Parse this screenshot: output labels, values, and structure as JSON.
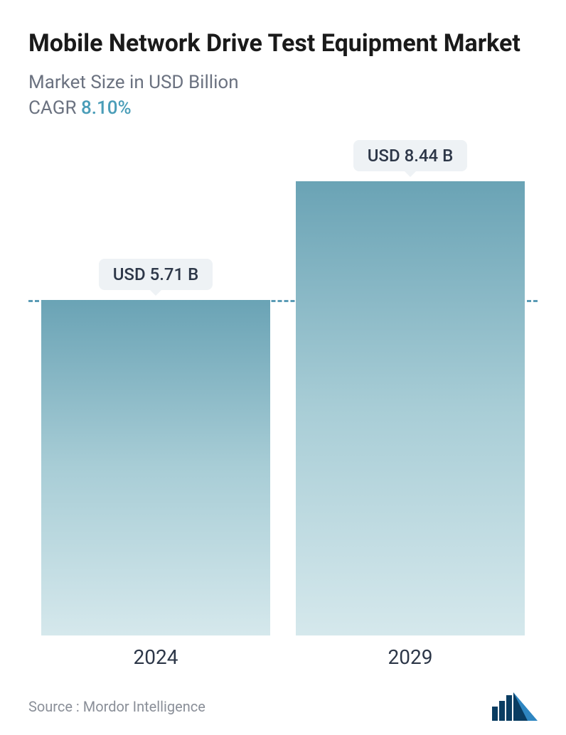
{
  "title": "Mobile Network Drive Test Equipment Market",
  "subtitle": "Market Size in USD Billion",
  "cagr_label": "CAGR",
  "cagr_value": "8.10%",
  "chart": {
    "type": "bar",
    "categories": [
      "2024",
      "2029"
    ],
    "values": [
      5.71,
      8.44
    ],
    "value_labels": [
      "USD 5.71 B",
      "USD 8.44 B"
    ],
    "bar_gradient_top": "#6aa3b5",
    "bar_gradient_mid": "#a8cdd6",
    "bar_gradient_bottom": "#d5e8ec",
    "pill_bg": "#eef2f5",
    "pill_text_color": "#2d3748",
    "pill_fontsize": 24,
    "dashed_line_color": "#5a9bb5",
    "dashed_line_at_value": 5.71,
    "ylim": [
      0,
      8.44
    ],
    "x_label_fontsize": 28,
    "x_label_color": "#2d3748",
    "background_color": "#ffffff",
    "bar_width_pct": 100
  },
  "title_style": {
    "fontsize": 34,
    "fontweight": 700,
    "color": "#1a1a1a"
  },
  "subtitle_style": {
    "fontsize": 26,
    "color": "#6b7280"
  },
  "cagr_style": {
    "label_color": "#6b7280",
    "value_color": "#4a9db8",
    "fontsize": 26
  },
  "source_label": "Source :",
  "source_value": "Mordor Intelligence",
  "source_style": {
    "fontsize": 20,
    "color": "#8a8f98"
  },
  "logo": {
    "name": "mordor-logo",
    "bar_color": "#0a3d62",
    "accent_color": "#2e86c1"
  }
}
